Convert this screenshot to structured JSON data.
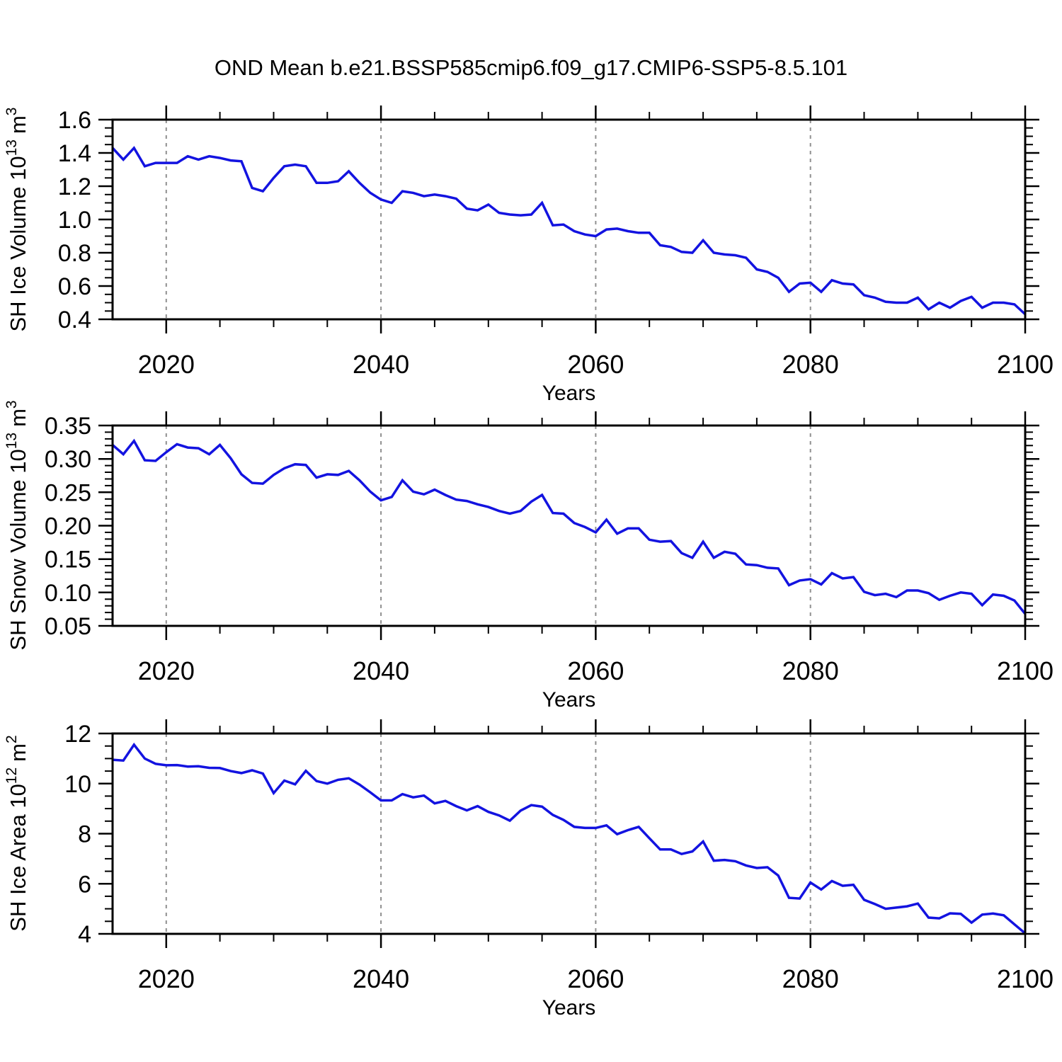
{
  "title": "OND Mean b.e21.BSSP585cmip6.f09_g17.CMIP6-SSP5-8.5.101",
  "colors": {
    "line": "#1313e0",
    "grid": "#909090",
    "axis": "#000000"
  },
  "x_axis": {
    "label": "Years",
    "min": 2015,
    "max": 2100,
    "minor_step": 5,
    "major_ticks": [
      2020,
      2040,
      2060,
      2080,
      2100
    ],
    "major_tick_labels": [
      "2020",
      "2040",
      "2060",
      "2080",
      "2100"
    ],
    "gridlines": [
      2020,
      2040,
      2060,
      2080
    ]
  },
  "chart_data": [
    {
      "type": "line",
      "name": "sh-ice-volume",
      "ylabel": {
        "text": "SH Ice Volume 10",
        "exp": "13",
        "unit": "m",
        "unit_exp": "3"
      },
      "ylim": [
        0.4,
        1.6
      ],
      "ytick_values": [
        0.4,
        0.6,
        0.8,
        1.0,
        1.2,
        1.4,
        1.6
      ],
      "ytick_labels": [
        "0.4",
        "0.6",
        "0.8",
        "1.0",
        "1.2",
        "1.4",
        "1.6"
      ],
      "yminor_step": 0.05,
      "x_start": 2015,
      "x_step": 1,
      "values": [
        1.43,
        1.36,
        1.43,
        1.32,
        1.34,
        1.34,
        1.34,
        1.38,
        1.36,
        1.38,
        1.37,
        1.355,
        1.35,
        1.19,
        1.17,
        1.25,
        1.32,
        1.33,
        1.32,
        1.22,
        1.22,
        1.23,
        1.29,
        1.22,
        1.16,
        1.12,
        1.1,
        1.17,
        1.16,
        1.14,
        1.15,
        1.14,
        1.125,
        1.065,
        1.055,
        1.09,
        1.04,
        1.03,
        1.025,
        1.03,
        1.1,
        0.965,
        0.97,
        0.93,
        0.91,
        0.9,
        0.94,
        0.945,
        0.93,
        0.92,
        0.92,
        0.845,
        0.835,
        0.805,
        0.8,
        0.875,
        0.8,
        0.79,
        0.785,
        0.77,
        0.7,
        0.685,
        0.65,
        0.565,
        0.615,
        0.62,
        0.565,
        0.635,
        0.615,
        0.61,
        0.545,
        0.53,
        0.505,
        0.5,
        0.5,
        0.53,
        0.46,
        0.5,
        0.47,
        0.51,
        0.535,
        0.47,
        0.5,
        0.5,
        0.49,
        0.43
      ]
    },
    {
      "type": "line",
      "name": "sh-snow-volume",
      "ylabel": {
        "text": "SH Snow Volume 10",
        "exp": "13",
        "unit": "m",
        "unit_exp": "3"
      },
      "ylim": [
        0.05,
        0.35
      ],
      "ytick_values": [
        0.05,
        0.1,
        0.15,
        0.2,
        0.25,
        0.3,
        0.35
      ],
      "ytick_labels": [
        "0.05",
        "0.10",
        "0.15",
        "0.20",
        "0.25",
        "0.30",
        "0.35"
      ],
      "yminor_step": 0.01,
      "x_start": 2015,
      "x_step": 1,
      "values": [
        0.321,
        0.307,
        0.327,
        0.298,
        0.297,
        0.31,
        0.322,
        0.317,
        0.316,
        0.307,
        0.321,
        0.301,
        0.277,
        0.264,
        0.263,
        0.276,
        0.286,
        0.292,
        0.291,
        0.272,
        0.277,
        0.276,
        0.282,
        0.268,
        0.251,
        0.238,
        0.243,
        0.268,
        0.251,
        0.247,
        0.254,
        0.246,
        0.239,
        0.237,
        0.232,
        0.228,
        0.222,
        0.218,
        0.222,
        0.236,
        0.246,
        0.219,
        0.218,
        0.204,
        0.198,
        0.19,
        0.209,
        0.188,
        0.196,
        0.196,
        0.179,
        0.176,
        0.177,
        0.159,
        0.152,
        0.176,
        0.152,
        0.161,
        0.158,
        0.142,
        0.141,
        0.137,
        0.136,
        0.111,
        0.118,
        0.12,
        0.112,
        0.129,
        0.121,
        0.123,
        0.101,
        0.096,
        0.098,
        0.093,
        0.103,
        0.103,
        0.099,
        0.089,
        0.095,
        0.1,
        0.098,
        0.081,
        0.097,
        0.095,
        0.088,
        0.068
      ]
    },
    {
      "type": "line",
      "name": "sh-ice-area",
      "ylabel": {
        "text": "SH Ice Area 10",
        "exp": "12",
        "unit": "m",
        "unit_exp": "2"
      },
      "ylim": [
        4,
        12
      ],
      "ytick_values": [
        4,
        6,
        8,
        10,
        12
      ],
      "ytick_labels": [
        "4",
        "6",
        "8",
        "10",
        "12"
      ],
      "yminor_step": 0.5,
      "x_start": 2015,
      "x_step": 1,
      "values": [
        10.95,
        10.92,
        11.55,
        11.0,
        10.79,
        10.73,
        10.74,
        10.68,
        10.69,
        10.63,
        10.62,
        10.5,
        10.42,
        10.53,
        10.4,
        9.62,
        10.12,
        9.97,
        10.51,
        10.1,
        10.0,
        10.15,
        10.21,
        9.96,
        9.65,
        9.33,
        9.33,
        9.58,
        9.45,
        9.52,
        9.21,
        9.31,
        9.1,
        8.93,
        9.1,
        8.87,
        8.73,
        8.52,
        8.92,
        9.14,
        9.08,
        8.75,
        8.55,
        8.27,
        8.23,
        8.23,
        8.33,
        7.98,
        8.14,
        8.27,
        7.82,
        7.37,
        7.37,
        7.19,
        7.29,
        7.69,
        6.92,
        6.95,
        6.9,
        6.73,
        6.63,
        6.66,
        6.33,
        5.44,
        5.41,
        6.05,
        5.77,
        6.11,
        5.92,
        5.96,
        5.36,
        5.19,
        5.0,
        5.05,
        5.1,
        5.21,
        4.65,
        4.62,
        4.82,
        4.8,
        4.45,
        4.77,
        4.81,
        4.74,
        4.38,
        4.02
      ]
    }
  ]
}
